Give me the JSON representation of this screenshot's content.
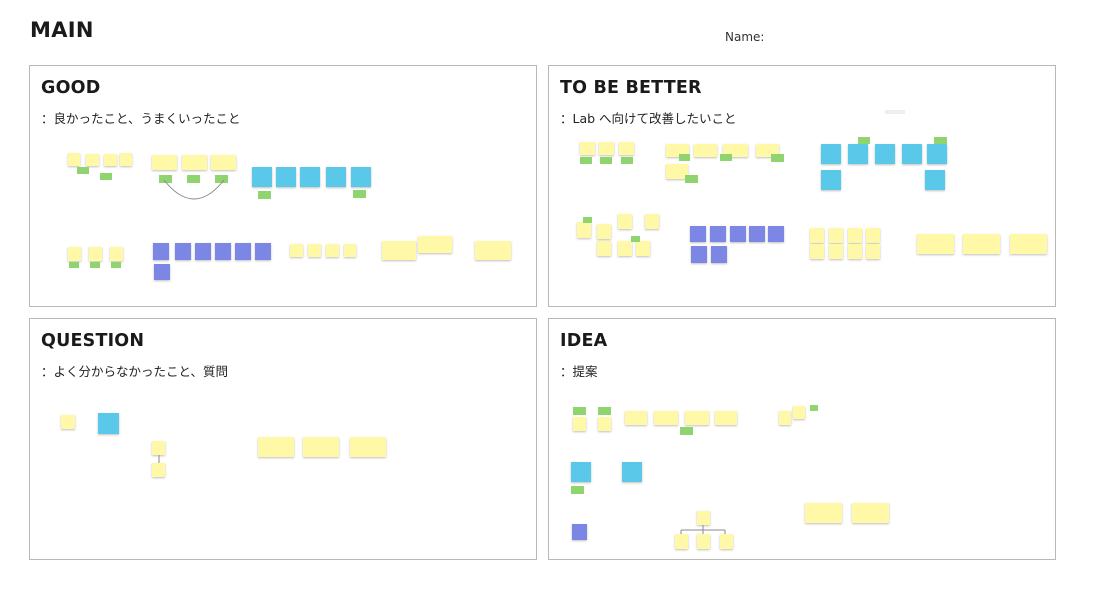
{
  "board": {
    "title": "MAIN",
    "name_label": "Name:"
  },
  "sections": {
    "good": {
      "title": "GOOD",
      "subtitle": "：良かったこと、うまくいったこと"
    },
    "better": {
      "title": "TO BE BETTER",
      "subtitle": "：Lab へ向けて改善したいこと"
    },
    "question": {
      "title": "QUESTION",
      "subtitle": "：よく分からなかったこと、質問"
    },
    "idea": {
      "title": "IDEA",
      "subtitle": "：提案"
    }
  },
  "colors": {
    "yellow_note": "#fef8a7",
    "cyan_note": "#5ac8e8",
    "blue_note": "#7c86e4",
    "green_note": "#8fd46e",
    "frame_border": "#b8b8b8"
  }
}
